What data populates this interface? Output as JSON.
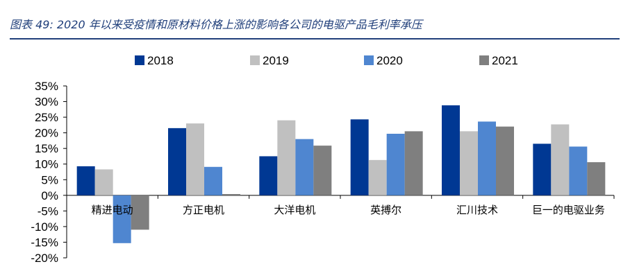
{
  "title": "图表 49:  2020 年以来受疫情和原材料价格上涨的影响各公司的电驱产品毛利率承压",
  "chart_data": {
    "type": "bar",
    "categories": [
      "精进电动",
      "方正电机",
      "大洋电机",
      "英搏尔",
      "汇川技术",
      "巨一的电驱业务"
    ],
    "series": [
      {
        "name": "2018",
        "color": "#003893",
        "values": [
          9.3,
          21.5,
          12.5,
          24.3,
          28.8,
          16.5
        ]
      },
      {
        "name": "2019",
        "color": "#c0c0c0",
        "values": [
          8.3,
          23.0,
          24.0,
          11.3,
          20.5,
          22.7
        ]
      },
      {
        "name": "2020",
        "color": "#4f86d0",
        "values": [
          -15.3,
          9.1,
          18.0,
          19.7,
          23.6,
          15.6
        ]
      },
      {
        "name": "2021",
        "color": "#7f7f7f",
        "values": [
          -11.0,
          0.4,
          15.9,
          20.5,
          22.0,
          10.6
        ]
      }
    ],
    "ylim": [
      -20,
      35
    ],
    "ytick_step": 5,
    "ytick_suffix": "%",
    "xlabel": "",
    "ylabel": "",
    "legend_position": "top"
  }
}
